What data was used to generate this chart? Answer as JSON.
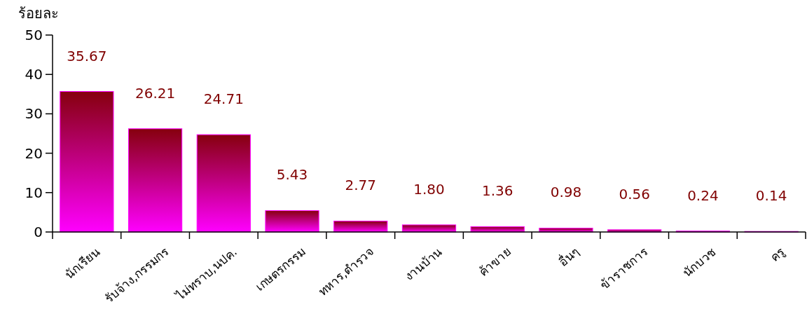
{
  "chart_data": {
    "type": "bar",
    "ylabel": "ร้อยละ",
    "categories": [
      "นักเรียน",
      "รับจ้าง,กรรมกร",
      "ไม่ทราบ,นปค.",
      "เกษตรกรรม",
      "ทหาร,ตำรวจ",
      "งานบ้าน",
      "ค้าขาย",
      "อื่นๆ",
      "ข้าราชการ",
      "นักบวช",
      "ครู"
    ],
    "values": [
      35.67,
      26.21,
      24.71,
      5.43,
      2.77,
      1.8,
      1.36,
      0.98,
      0.56,
      0.24,
      0.14
    ],
    "color": "#ff00ff",
    "ylim": [
      0,
      50
    ],
    "yticks": [
      0,
      10,
      20,
      30,
      40,
      50
    ],
    "value_labels": [
      "35.67",
      "26.21",
      "24.71",
      "5.43",
      "2.77",
      "1.80",
      "1.36",
      "0.98",
      "0.56",
      "0.24",
      "0.14"
    ],
    "grid": false
  }
}
